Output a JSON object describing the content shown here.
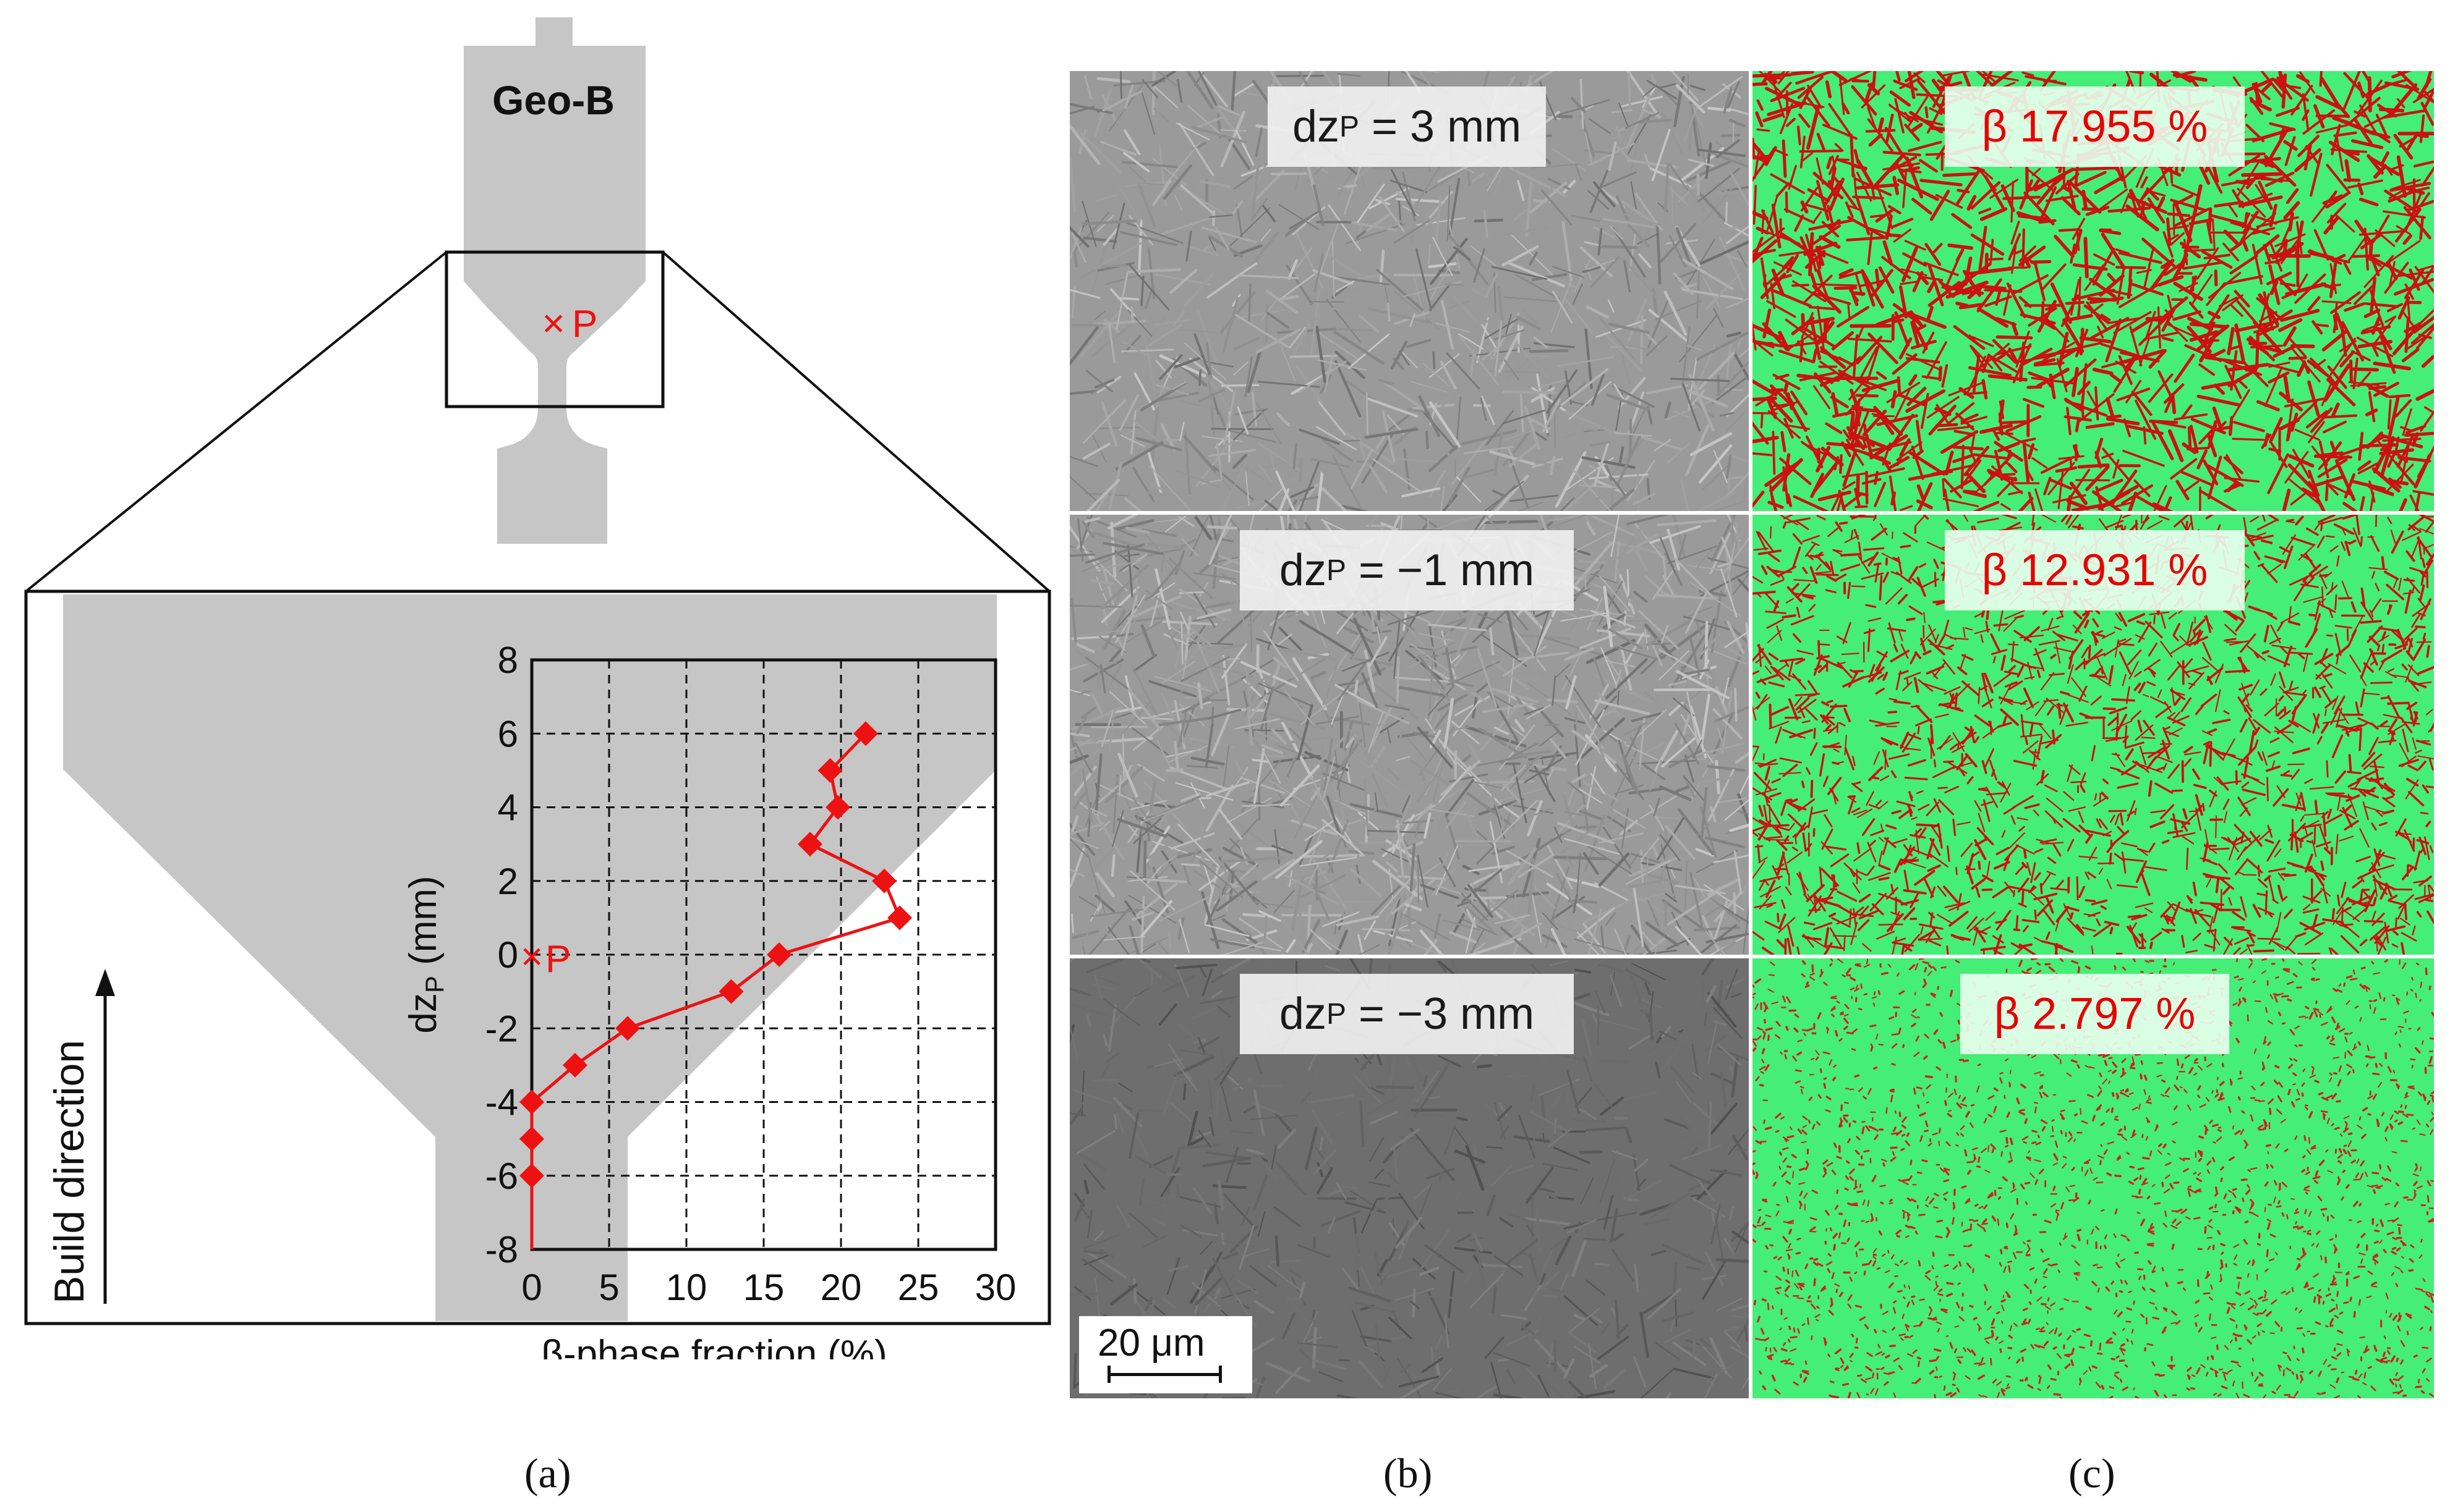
{
  "part_label": "Geo-B",
  "point_label": "P",
  "marker_symbol": "×",
  "build_direction": "Build direction",
  "chart_data": {
    "type": "line",
    "xlabel": "β-phase fraction (%)",
    "ylabel_main": "dz",
    "ylabel_sub": "P",
    "ylabel_unit": " (mm)",
    "xlim": [
      0,
      30
    ],
    "ylim": [
      -8,
      8
    ],
    "x_ticks": [
      "0",
      "5",
      "10",
      "15",
      "20",
      "25",
      "30"
    ],
    "y_ticks": [
      "8",
      "6",
      "4",
      "2",
      "0",
      "-2",
      "-4",
      "-6",
      "-8"
    ],
    "grid": "dashed",
    "series": [
      {
        "color": "#ee1111",
        "x": [
          0,
          0,
          0,
          2.8,
          6.2,
          12.9,
          16,
          23.8,
          22.8,
          18,
          19.8,
          19.3,
          21.6
        ],
        "y": [
          -6,
          -5,
          -4,
          -3,
          -2,
          -1,
          0,
          1,
          2,
          3,
          4,
          5,
          6
        ]
      }
    ]
  },
  "micro_labels": [
    {
      "pre": "dz",
      "sub": "P",
      "post": " = 3 mm"
    },
    {
      "pre": "dz",
      "sub": "P",
      "post": " = −1 mm"
    },
    {
      "pre": "dz",
      "sub": "P",
      "post": " = −3 mm"
    }
  ],
  "beta_labels": [
    "β 17.955 %",
    "β 12.931 %",
    "β 2.797 %"
  ],
  "scale_bar": "20 μm",
  "subfigure_labels": [
    "(a)",
    "(b)",
    "(c)"
  ],
  "colors": {
    "part_gray": "#c6c6c6",
    "marker_red": "#ee1111",
    "phase_green": "#44ee77",
    "beta_red": "#cc1111"
  }
}
